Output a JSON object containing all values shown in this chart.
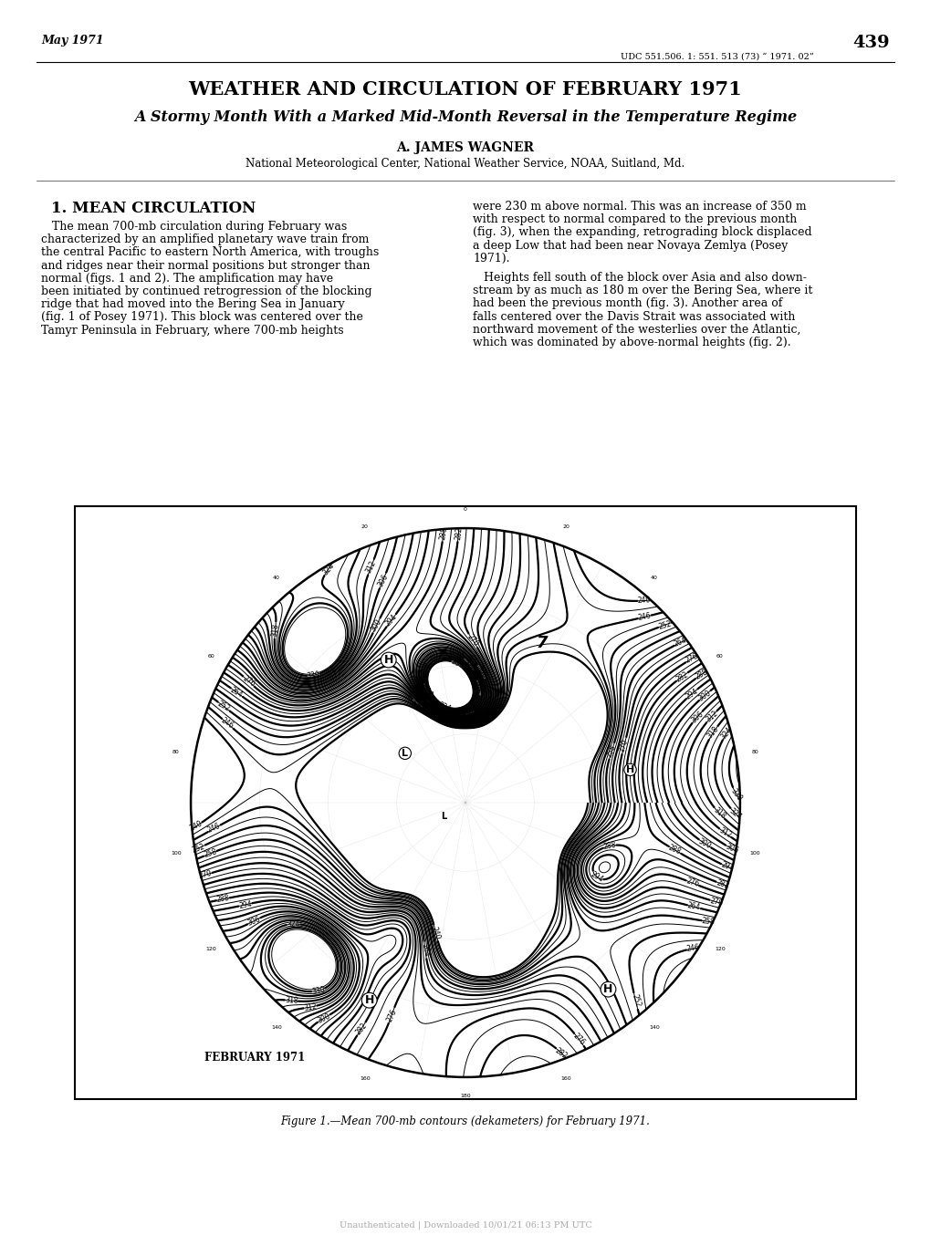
{
  "page_number": "439",
  "date_header": "May 1971",
  "udc": "UDC 551.506. 1: 551. 513 (73) “ 1971. 02”",
  "main_title": "WEATHER AND CIRCULATION OF FEBRUARY 1971",
  "subtitle": "A Stormy Month With a Marked Mid-Month Reversal in the Temperature Regime",
  "author": "A. JAMES WAGNER",
  "affiliation": "National Meteorological Center, National Weather Service, NOAA, Suitland, Md.",
  "section_title": "1. MEAN CIRCULATION",
  "left_col_text": [
    "   The mean 700-mb circulation during February was",
    "characterized by an amplified planetary wave train from",
    "the central Pacific to eastern North America, with troughs",
    "and ridges near their normal positions but stronger than",
    "normal (figs. 1 and 2). The amplification may have",
    "been initiated by continued retrogression of the blocking",
    "ridge that had moved into the Bering Sea in January",
    "(fig. 1 of Posey 1971). This block was centered over the",
    "Tamyr Peninsula in February, where 700-mb heights"
  ],
  "right_col_text_1": [
    "were 230 m above normal. This was an increase of 350 m",
    "with respect to normal compared to the previous month",
    "(fig. 3), when the expanding, retrograding block displaced",
    "a deep Low that had been near Novaya Zemlya (Posey",
    "1971)."
  ],
  "right_col_text_2": [
    "   Heights fell south of the block over Asia and also down-",
    "stream by as much as 180 m over the Bering Sea, where it",
    "had been the previous month (fig. 3). Another area of",
    "falls centered over the Davis Strait was associated with",
    "northward movement of the westerlies over the Atlantic,",
    "which was dominated by above-normal heights (fig. 2)."
  ],
  "figure_caption": "Figure 1.—Mean 700-mb contours (dekameters) for February 1971.",
  "footer": "Unauthenticated | Downloaded 10/01/21 06:13 PM UTC",
  "bg_color": "#ffffff",
  "text_color": "#000000",
  "map_label": "FEBRUARY 1971"
}
